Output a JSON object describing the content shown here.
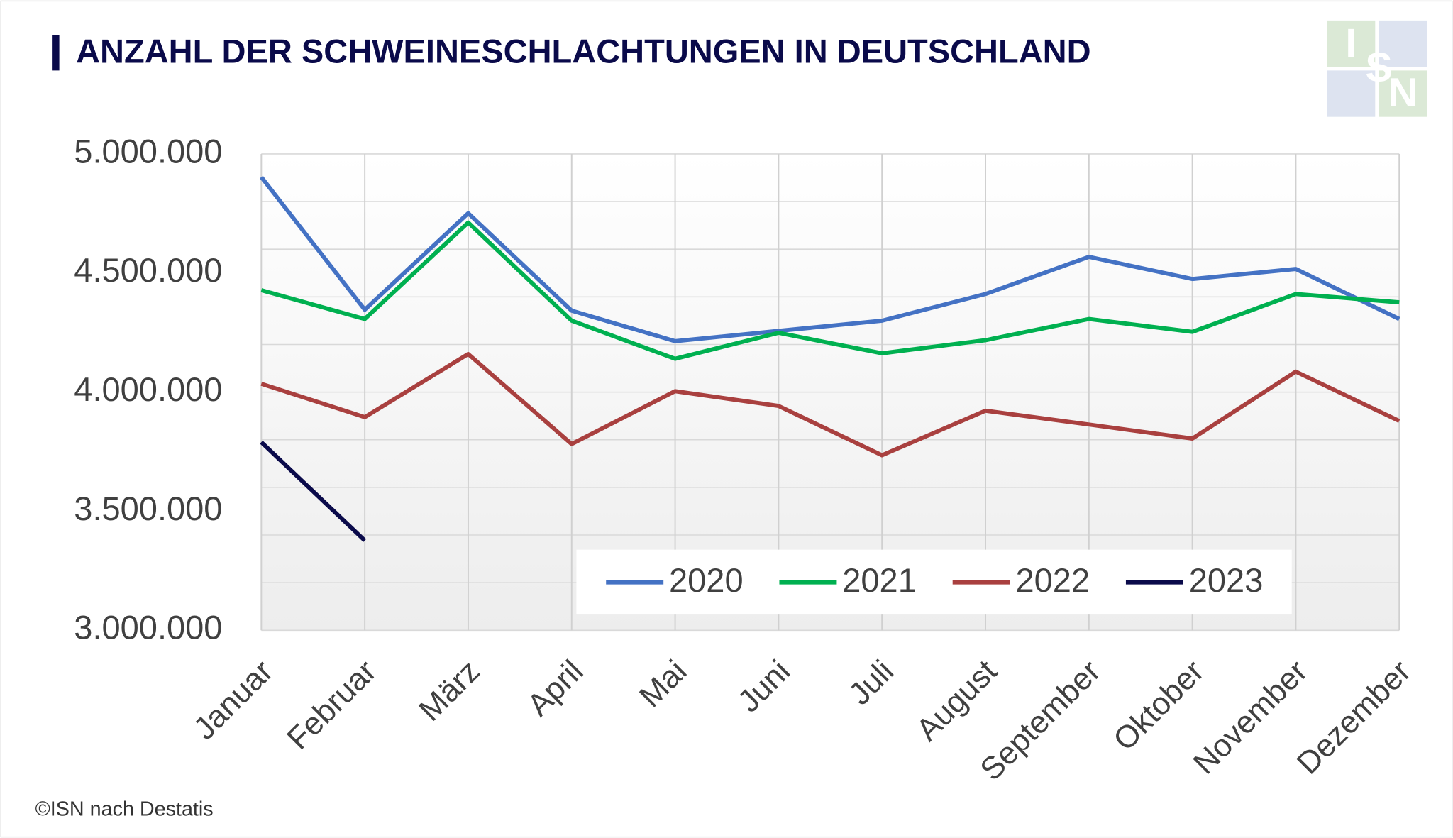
{
  "chart_data": {
    "type": "line",
    "title": "ANZAHL DER SCHWEINESCHLACHTUNGEN IN DEUTSCHLAND",
    "source": "©ISN nach Destatis",
    "logo": [
      "I",
      "S",
      "N"
    ],
    "categories": [
      "Januar",
      "Februar",
      "März",
      "April",
      "Mai",
      "Juni",
      "Juli",
      "August",
      "September",
      "Oktober",
      "November",
      "Dezember"
    ],
    "series": [
      {
        "name": "2020",
        "color": "#4472c4",
        "values": [
          4903000,
          4346000,
          4751000,
          4342000,
          4214000,
          4257000,
          4300000,
          4412000,
          4568000,
          4475000,
          4517000,
          4307000
        ]
      },
      {
        "name": "2021",
        "color": "#00b050",
        "values": [
          4428000,
          4307000,
          4712000,
          4300000,
          4140000,
          4249000,
          4163000,
          4218000,
          4307000,
          4253000,
          4412000,
          4377000
        ]
      },
      {
        "name": "2022",
        "color": "#a9403f",
        "values": [
          4035000,
          3895000,
          4160000,
          3782000,
          4004000,
          3942000,
          3735000,
          3922000,
          3864000,
          3805000,
          4086000,
          3879000
        ]
      },
      {
        "name": "2023",
        "color": "#0a0a4a",
        "values": [
          3790000,
          3377000,
          null,
          null,
          null,
          null,
          null,
          null,
          null,
          null,
          null,
          null
        ]
      }
    ],
    "ylim": [
      3000000,
      5000000
    ],
    "yticks": [
      {
        "value": 3000000,
        "label": "3.000.000"
      },
      {
        "value": 3500000,
        "label": "3.500.000"
      },
      {
        "value": 4000000,
        "label": "4.000.000"
      },
      {
        "value": 4500000,
        "label": "4.500.000"
      },
      {
        "value": 5000000,
        "label": "5.000.000"
      }
    ],
    "ygrid": [
      3000000,
      3200000,
      3400000,
      3600000,
      3800000,
      4000000,
      4200000,
      4400000,
      4600000,
      4800000,
      5000000
    ],
    "grid": true,
    "legend": "bottom-right"
  }
}
